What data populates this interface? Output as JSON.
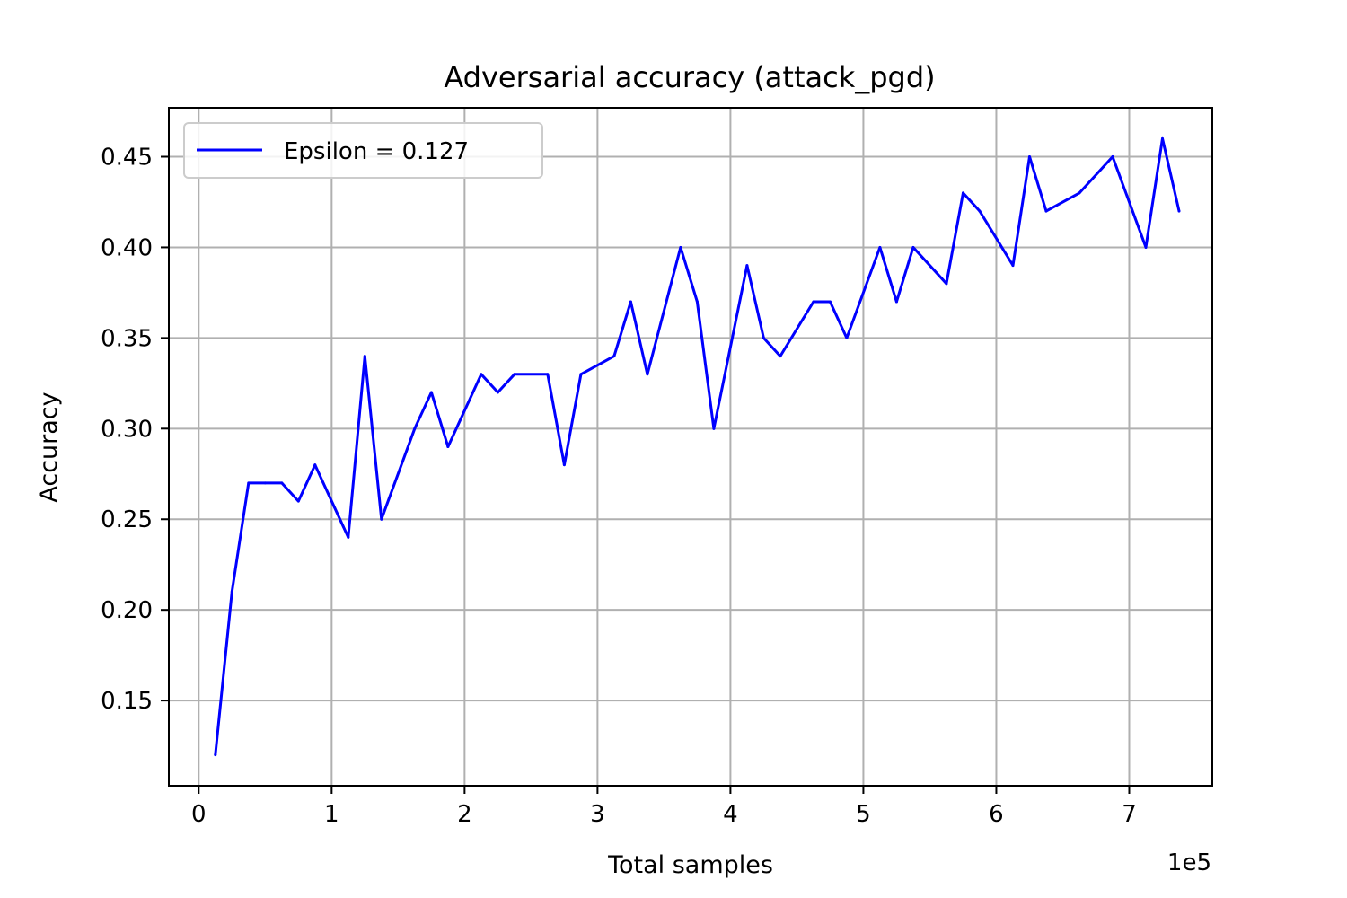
{
  "chart_data": {
    "type": "line",
    "title": "Adversarial accuracy (attack_pgd)",
    "xlabel": "Total samples",
    "ylabel": "Accuracy",
    "x_offset_label": "1e5",
    "x_scale": 100000,
    "xlim": [
      -22500,
      762500
    ],
    "ylim": [
      0.103,
      0.477
    ],
    "x_ticks": [
      0,
      100000,
      200000,
      300000,
      400000,
      500000,
      600000,
      700000
    ],
    "x_tick_labels": [
      "0",
      "1",
      "2",
      "3",
      "4",
      "5",
      "6",
      "7"
    ],
    "y_ticks": [
      0.15,
      0.2,
      0.25,
      0.3,
      0.35,
      0.4,
      0.45
    ],
    "y_tick_labels": [
      "0.15",
      "0.20",
      "0.25",
      "0.30",
      "0.35",
      "0.40",
      "0.45"
    ],
    "grid": true,
    "legend_position": "top-left",
    "series": [
      {
        "name": "Epsilon = 0.127",
        "color": "#0000ff",
        "x": [
          12500,
          25000,
          37500,
          50000,
          62500,
          75000,
          87500,
          112500,
          125000,
          137500,
          162500,
          175000,
          187500,
          212500,
          225000,
          237500,
          262500,
          275000,
          287500,
          312500,
          325000,
          337500,
          362500,
          375000,
          387500,
          412500,
          425000,
          437500,
          462500,
          475000,
          487500,
          512500,
          525000,
          537500,
          562500,
          575000,
          587500,
          612500,
          625000,
          637500,
          662500,
          687500,
          712500,
          725000,
          737500
        ],
        "y": [
          0.12,
          0.21,
          0.27,
          0.27,
          0.27,
          0.26,
          0.28,
          0.24,
          0.34,
          0.25,
          0.3,
          0.32,
          0.29,
          0.33,
          0.32,
          0.33,
          0.33,
          0.28,
          0.33,
          0.34,
          0.37,
          0.33,
          0.4,
          0.37,
          0.3,
          0.39,
          0.35,
          0.34,
          0.37,
          0.37,
          0.35,
          0.4,
          0.37,
          0.4,
          0.38,
          0.43,
          0.42,
          0.39,
          0.45,
          0.42,
          0.43,
          0.45,
          0.4,
          0.46,
          0.42
        ]
      }
    ]
  }
}
